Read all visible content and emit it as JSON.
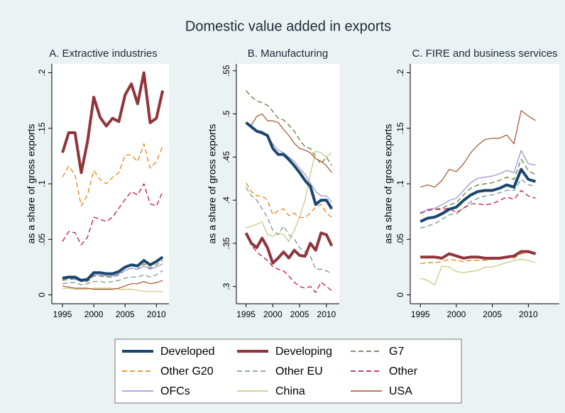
{
  "title": "Domestic value added in exports",
  "chart_data": [
    {
      "type": "line",
      "title": "A. Extractive industries",
      "y_label": "as a share of gross exports",
      "x": [
        1995,
        1996,
        1997,
        1998,
        1999,
        2000,
        2001,
        2002,
        2003,
        2004,
        2005,
        2006,
        2007,
        2008,
        2009,
        2010,
        2011
      ],
      "xlim": [
        1993.3,
        2012
      ],
      "xticks": [
        1995,
        2000,
        2005,
        2010
      ],
      "ylim": [
        -0.008,
        0.208
      ],
      "yticks": [
        0,
        {
          "value": 0.05,
          "label": ".05"
        },
        {
          "value": 0.1,
          "label": ".1"
        },
        {
          "value": 0.15,
          "label": ".15"
        },
        {
          "value": 0.2,
          "label": ".2"
        }
      ],
      "series": [
        {
          "name": "Developed",
          "color": "#1a476f",
          "style": "solid",
          "weight": "thick",
          "values": [
            0.015,
            0.016,
            0.016,
            0.013,
            0.014,
            0.02,
            0.02,
            0.019,
            0.019,
            0.021,
            0.025,
            0.027,
            0.026,
            0.031,
            0.027,
            0.03,
            0.034
          ]
        },
        {
          "name": "Developing",
          "color": "#90353b",
          "style": "solid",
          "weight": "thick",
          "values": [
            0.128,
            0.146,
            0.146,
            0.11,
            0.138,
            0.178,
            0.16,
            0.152,
            0.159,
            0.156,
            0.18,
            0.19,
            0.172,
            0.2,
            0.155,
            0.159,
            0.184
          ]
        },
        {
          "name": "G7",
          "color": "#55752f",
          "style": "dash",
          "weight": "thin",
          "values": [
            0.013,
            0.014,
            0.014,
            0.012,
            0.012,
            0.017,
            0.017,
            0.016,
            0.016,
            0.018,
            0.022,
            0.024,
            0.023,
            0.028,
            0.024,
            0.027,
            0.031
          ]
        },
        {
          "name": "Other G20",
          "color": "#e37e00",
          "style": "dash",
          "weight": "thin",
          "values": [
            0.106,
            0.116,
            0.108,
            0.08,
            0.09,
            0.112,
            0.104,
            0.1,
            0.106,
            0.11,
            0.126,
            0.126,
            0.12,
            0.136,
            0.114,
            0.12,
            0.134
          ]
        },
        {
          "name": "Other EU",
          "color": "#6e8e84",
          "style": "dash",
          "weight": "thin",
          "values": [
            0.01,
            0.011,
            0.011,
            0.009,
            0.01,
            0.012,
            0.012,
            0.011,
            0.012,
            0.013,
            0.015,
            0.016,
            0.016,
            0.018,
            0.016,
            0.018,
            0.022
          ]
        },
        {
          "name": "Other",
          "color": "#c10534",
          "style": "dash",
          "weight": "thin",
          "values": [
            0.048,
            0.057,
            0.056,
            0.045,
            0.052,
            0.07,
            0.068,
            0.066,
            0.07,
            0.078,
            0.086,
            0.093,
            0.09,
            0.1,
            0.082,
            0.08,
            0.093
          ]
        },
        {
          "name": "OFCs",
          "color": "#938dd2",
          "style": "solid",
          "weight": "thin",
          "values": [
            0.014,
            0.015,
            0.014,
            0.012,
            0.013,
            0.018,
            0.018,
            0.017,
            0.017,
            0.019,
            0.022,
            0.024,
            0.023,
            0.026,
            0.023,
            0.025,
            0.028
          ]
        },
        {
          "name": "China",
          "color": "#cac27e",
          "style": "solid",
          "weight": "thin",
          "values": [
            0.006,
            0.006,
            0.005,
            0.005,
            0.005,
            0.006,
            0.006,
            0.006,
            0.006,
            0.005,
            0.005,
            0.005,
            0.004,
            0.003,
            0.003,
            0.003,
            0.003
          ]
        },
        {
          "name": "USA",
          "color": "#a0522d",
          "style": "solid",
          "weight": "thin",
          "values": [
            0.008,
            0.007,
            0.006,
            0.006,
            0.006,
            0.005,
            0.005,
            0.005,
            0.005,
            0.006,
            0.008,
            0.01,
            0.01,
            0.012,
            0.01,
            0.011,
            0.013
          ]
        }
      ]
    },
    {
      "type": "line",
      "title": "B. Manufacturing",
      "y_label": "as a share of gross exports",
      "x": [
        1995,
        1996,
        1997,
        1998,
        1999,
        2000,
        2001,
        2002,
        2003,
        2004,
        2005,
        2006,
        2007,
        2008,
        2009,
        2010,
        2011
      ],
      "xlim": [
        1993.2,
        2012.4
      ],
      "xticks": [
        1995,
        2000,
        2005,
        2010
      ],
      "ylim": [
        0.28,
        0.558
      ],
      "yticks": [
        {
          "value": 0.3,
          "label": ".3"
        },
        {
          "value": 0.35,
          "label": ".35"
        },
        {
          "value": 0.4,
          "label": ".4"
        },
        {
          "value": 0.45,
          "label": ".45"
        },
        {
          "value": 0.5,
          "label": ".5"
        },
        {
          "value": 0.55,
          "label": ".55"
        }
      ],
      "series": [
        {
          "values": [
            0.49,
            0.485,
            0.48,
            0.478,
            0.475,
            0.46,
            0.453,
            0.453,
            0.447,
            0.44,
            0.432,
            0.423,
            0.416,
            0.395,
            0.4,
            0.4,
            0.39
          ]
        },
        {
          "values": [
            0.362,
            0.35,
            0.345,
            0.356,
            0.345,
            0.327,
            0.333,
            0.34,
            0.333,
            0.342,
            0.336,
            0.335,
            0.35,
            0.342,
            0.362,
            0.36,
            0.347
          ]
        },
        {
          "values": [
            0.527,
            0.52,
            0.515,
            0.513,
            0.51,
            0.503,
            0.495,
            0.493,
            0.487,
            0.48,
            0.47,
            0.462,
            0.46,
            0.45,
            0.442,
            0.45,
            0.44
          ]
        },
        {
          "values": [
            0.42,
            0.41,
            0.405,
            0.405,
            0.4,
            0.383,
            0.388,
            0.39,
            0.382,
            0.385,
            0.38,
            0.38,
            0.385,
            0.392,
            0.395,
            0.385,
            0.38
          ]
        },
        {
          "values": [
            0.415,
            0.405,
            0.4,
            0.39,
            0.38,
            0.365,
            0.36,
            0.37,
            0.36,
            0.355,
            0.345,
            0.34,
            0.335,
            0.32,
            0.32,
            0.318,
            0.315
          ]
        },
        {
          "values": [
            0.362,
            0.348,
            0.34,
            0.335,
            0.33,
            0.323,
            0.32,
            0.318,
            0.312,
            0.305,
            0.3,
            0.298,
            0.3,
            0.293,
            0.305,
            0.3,
            0.295
          ]
        },
        {
          "values": [
            0.49,
            0.485,
            0.48,
            0.48,
            0.475,
            0.465,
            0.458,
            0.455,
            0.45,
            0.445,
            0.437,
            0.43,
            0.42,
            0.41,
            0.405,
            0.405,
            0.398
          ]
        },
        {
          "values": [
            0.368,
            0.37,
            0.372,
            0.375,
            0.36,
            0.358,
            0.362,
            0.36,
            0.352,
            0.365,
            0.38,
            0.4,
            0.43,
            0.457,
            0.455,
            0.45,
            0.455
          ]
        },
        {
          "values": [
            0.49,
            0.487,
            0.497,
            0.5,
            0.492,
            0.492,
            0.49,
            0.482,
            0.475,
            0.466,
            0.46,
            0.458,
            0.455,
            0.448,
            0.445,
            0.44,
            0.432
          ]
        }
      ]
    },
    {
      "type": "line",
      "title": "C. FIRE and business services",
      "y_label": "as a share of gross exports",
      "x": [
        1995,
        1996,
        1997,
        1998,
        1999,
        2000,
        2001,
        2002,
        2003,
        2004,
        2005,
        2006,
        2007,
        2008,
        2009,
        2010,
        2011
      ],
      "xlim": [
        1993.6,
        2014.3
      ],
      "xticks": [
        1995,
        2000,
        2005,
        2010
      ],
      "ylim": [
        -0.008,
        0.208
      ],
      "yticks": [
        0,
        {
          "value": 0.05,
          "label": ".05"
        },
        {
          "value": 0.1,
          "label": ".1"
        },
        {
          "value": 0.15,
          "label": ".15"
        },
        {
          "value": 0.2,
          "label": ".2"
        }
      ],
      "series": [
        {
          "values": [
            0.066,
            0.069,
            0.07,
            0.073,
            0.077,
            0.079,
            0.085,
            0.09,
            0.093,
            0.094,
            0.094,
            0.096,
            0.099,
            0.097,
            0.113,
            0.104,
            0.102
          ]
        },
        {
          "values": [
            0.034,
            0.034,
            0.034,
            0.033,
            0.037,
            0.035,
            0.033,
            0.034,
            0.034,
            0.033,
            0.033,
            0.033,
            0.034,
            0.035,
            0.039,
            0.039,
            0.037
          ]
        },
        {
          "values": [
            0.073,
            0.076,
            0.077,
            0.078,
            0.081,
            0.083,
            0.09,
            0.096,
            0.099,
            0.1,
            0.101,
            0.103,
            0.106,
            0.104,
            0.122,
            0.112,
            0.108
          ]
        },
        {
          "values": [
            0.028,
            0.029,
            0.029,
            0.03,
            0.032,
            0.031,
            0.03,
            0.031,
            0.031,
            0.031,
            0.032,
            0.032,
            0.034,
            0.033,
            0.037,
            0.038,
            0.036
          ]
        },
        {
          "values": [
            0.06,
            0.062,
            0.064,
            0.068,
            0.072,
            0.073,
            0.078,
            0.084,
            0.087,
            0.089,
            0.09,
            0.092,
            0.094,
            0.094,
            0.104,
            0.099,
            0.098
          ]
        },
        {
          "values": [
            0.074,
            0.076,
            0.077,
            0.077,
            0.078,
            0.074,
            0.078,
            0.082,
            0.082,
            0.081,
            0.082,
            0.085,
            0.088,
            0.086,
            0.094,
            0.089,
            0.087
          ]
        },
        {
          "values": [
            0.073,
            0.077,
            0.078,
            0.081,
            0.085,
            0.087,
            0.094,
            0.101,
            0.105,
            0.106,
            0.107,
            0.109,
            0.112,
            0.11,
            0.13,
            0.118,
            0.117
          ]
        },
        {
          "values": [
            0.015,
            0.013,
            0.009,
            0.026,
            0.025,
            0.021,
            0.02,
            0.021,
            0.022,
            0.025,
            0.025,
            0.027,
            0.029,
            0.031,
            0.032,
            0.031,
            0.029
          ]
        },
        {
          "values": [
            0.097,
            0.099,
            0.097,
            0.103,
            0.113,
            0.111,
            0.118,
            0.128,
            0.135,
            0.14,
            0.141,
            0.141,
            0.144,
            0.136,
            0.166,
            0.161,
            0.157
          ]
        }
      ]
    }
  ]
}
